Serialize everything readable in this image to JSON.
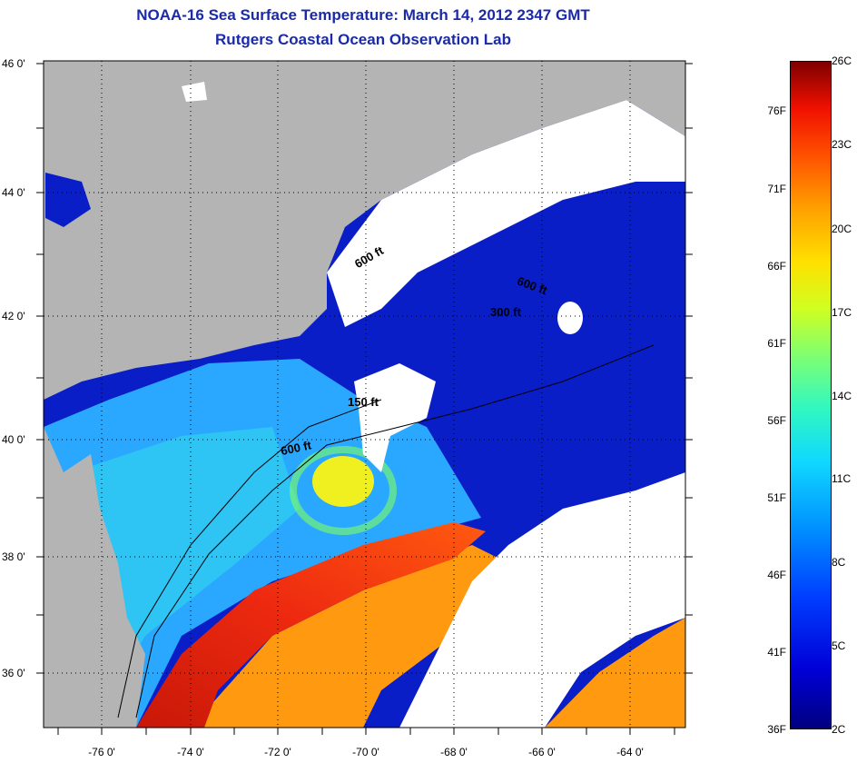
{
  "header": {
    "title": "NOAA-16 Sea Surface Temperature:  March 14, 2012 2347 GMT",
    "subtitle": "Rutgers Coastal Ocean Observation Lab"
  },
  "map": {
    "lat_labels": [
      "46 0'",
      "44 0'",
      "42 0'",
      "40 0'",
      "38 0'",
      "36 0'"
    ],
    "lon_labels": [
      "-76 0'",
      "-74 0'",
      "-72 0'",
      "-70 0'",
      "-68 0'",
      "-66 0'",
      "-64 0'"
    ],
    "contour_labels": [
      "600 ft",
      "600 ft",
      "300 ft",
      "150 ft",
      "600 ft"
    ],
    "colors": {
      "land": "#b4b4b4",
      "cloud": "#ffffff",
      "cold_water": "#0a1ec8",
      "shelf_water": "#2aa8ff",
      "gulf_stream": "#e82a10",
      "warm_water": "#ff9a10",
      "eddy": "#f0f020"
    }
  },
  "colorbar": {
    "fahrenheit": [
      "76F",
      "71F",
      "66F",
      "61F",
      "56F",
      "51F",
      "46F",
      "41F",
      "36F"
    ],
    "celsius": [
      "26C",
      "23C",
      "20C",
      "17C",
      "14C",
      "11C",
      "8C",
      "5C",
      "2C"
    ]
  }
}
